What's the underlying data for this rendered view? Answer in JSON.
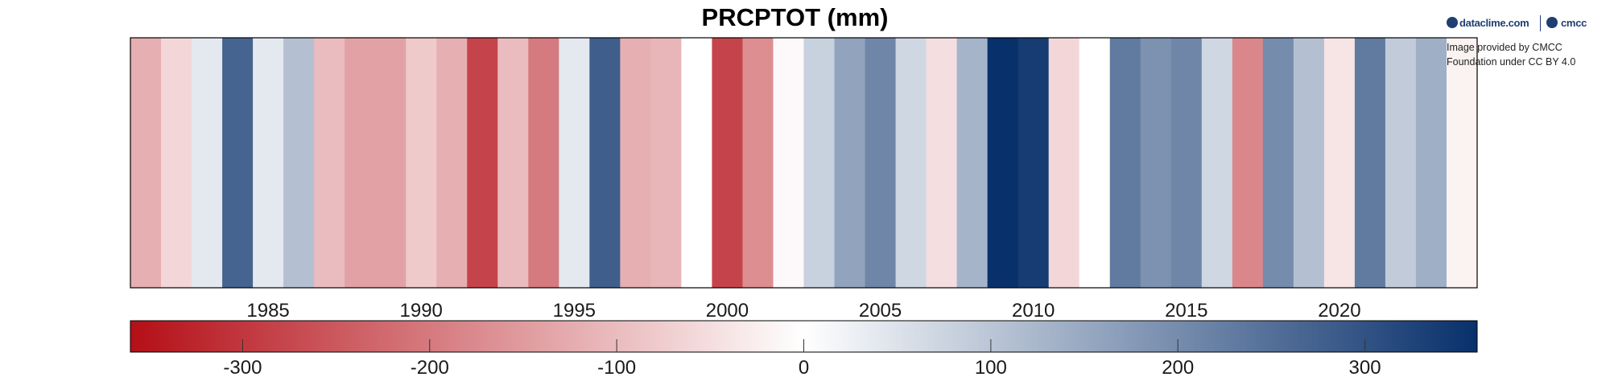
{
  "chart_data": {
    "type": "heatmap",
    "title": "PRCPTOT (mm)",
    "x": [
      1981,
      1982,
      1983,
      1984,
      1985,
      1986,
      1987,
      1988,
      1989,
      1990,
      1991,
      1992,
      1993,
      1994,
      1995,
      1996,
      1997,
      1998,
      1999,
      2000,
      2001,
      2002,
      2003,
      2004,
      2005,
      2006,
      2007,
      2008,
      2009,
      2010,
      2011,
      2012,
      2013,
      2014,
      2015,
      2016,
      2017,
      2018,
      2019,
      2020,
      2021,
      2022,
      2023,
      2024
    ],
    "values": [
      -120,
      -60,
      40,
      270,
      40,
      110,
      -100,
      -140,
      -140,
      -80,
      -120,
      -280,
      -100,
      -200,
      40,
      280,
      -120,
      -110,
      0,
      -280,
      -170,
      -10,
      80,
      160,
      210,
      70,
      -50,
      130,
      360,
      340,
      -60,
      0,
      230,
      190,
      210,
      70,
      -180,
      200,
      110,
      -40,
      230,
      90,
      140,
      -20
    ],
    "xticks": [
      1985,
      1990,
      1995,
      2000,
      2005,
      2010,
      2015,
      2020
    ],
    "colorbar": {
      "min": -360,
      "max": 360,
      "ticks": [
        -300,
        -200,
        -100,
        0,
        100,
        200,
        300
      ],
      "colors": [
        "#b40f17",
        "#ffffff",
        "#08306b"
      ]
    }
  },
  "logos": {
    "left": "dataclime.com",
    "right": "cmcc"
  },
  "credit": {
    "line1": "Image provided by CMCC",
    "line2": "Foundation under CC BY 4.0"
  }
}
